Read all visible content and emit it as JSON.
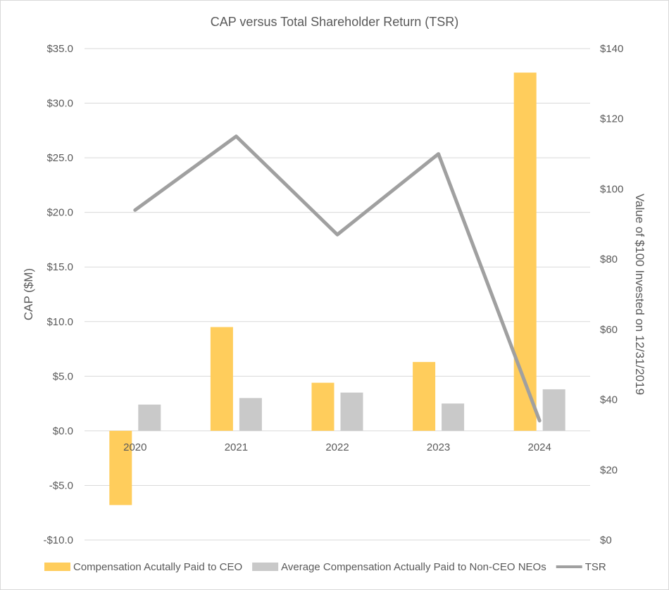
{
  "chart_data": {
    "type": "bar",
    "title": "CAP versus Total Shareholder Return (TSR)",
    "categories": [
      "2020",
      "2021",
      "2022",
      "2023",
      "2024"
    ],
    "ylabel": "CAP ($M)",
    "y2label": "Value of $100 Invested on 12/31/2019",
    "ylim": [
      -10,
      35
    ],
    "y2lim": [
      0,
      140
    ],
    "yticks": [
      35,
      30,
      25,
      20,
      15,
      10,
      5,
      0,
      -5,
      -10
    ],
    "ytick_labels": [
      "$35.0",
      "$30.0",
      "$25.0",
      "$20.0",
      "$15.0",
      "$10.0",
      "$5.0",
      "$0.0",
      "-$5.0",
      "-$10.0"
    ],
    "y2ticks": [
      140,
      120,
      100,
      80,
      60,
      40,
      20,
      0
    ],
    "y2tick_labels": [
      "$140",
      "$120",
      "$100",
      "$80",
      "$60",
      "$40",
      "$20",
      "$0"
    ],
    "grid": true,
    "legend_position": "bottom",
    "series": [
      {
        "name": "Compensation Acutally Paid to CEO",
        "kind": "bar",
        "axis": "left",
        "color": "#ffcd5c",
        "values": [
          -6.8,
          9.5,
          4.4,
          6.3,
          32.8
        ]
      },
      {
        "name": "Average Compensation Actually Paid to Non-CEO NEOs",
        "kind": "bar",
        "axis": "left",
        "color": "#c9c9c9",
        "values": [
          2.4,
          3.0,
          3.5,
          2.5,
          3.8
        ]
      },
      {
        "name": "TSR",
        "kind": "line",
        "axis": "right",
        "color": "#a0a0a0",
        "values": [
          94,
          115,
          87,
          110,
          34
        ]
      }
    ]
  }
}
